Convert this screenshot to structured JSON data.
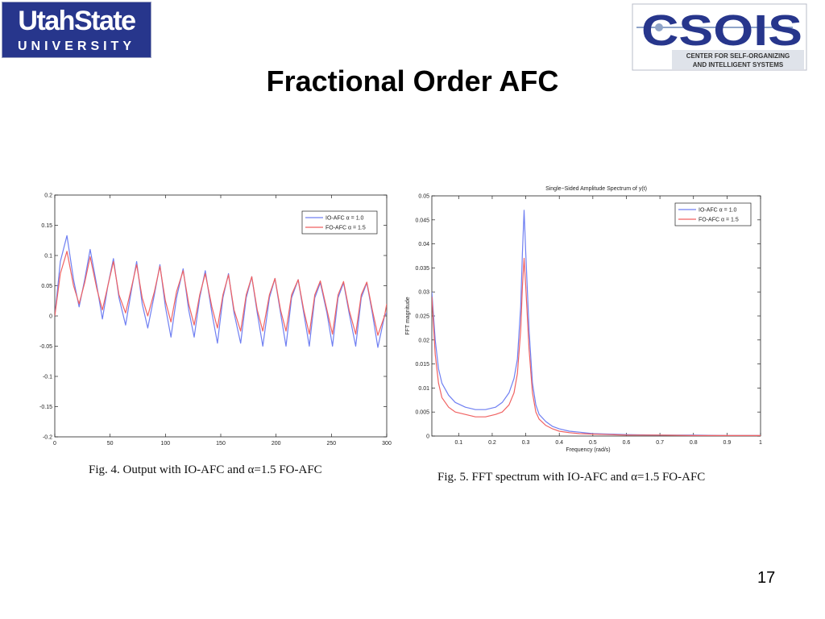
{
  "slide": {
    "title": "Fractional Order AFC",
    "page_number": "17",
    "logos": {
      "left": {
        "line1": "UtahState",
        "line2": "UNIVERSITY",
        "color": "#27368c"
      },
      "right": {
        "name": "CSOIS",
        "line1": "CENTER FOR SELF-ORGANIZING",
        "line2": "AND INTELLIGENT SYSTEMS",
        "color": "#27368c"
      }
    }
  },
  "colors": {
    "io_afc": "#6f7ff2",
    "fo_afc": "#f06262"
  },
  "chart_data": [
    {
      "type": "line",
      "title": "",
      "caption": "Fig. 4.    Output with IO-AFC and α=1.5 FO-AFC",
      "xlabel": "",
      "ylabel": "",
      "xlim": [
        0,
        300
      ],
      "ylim": [
        -0.2,
        0.2
      ],
      "xticks": [
        "0",
        "50",
        "100",
        "150",
        "200",
        "250",
        "300"
      ],
      "yticks": [
        "0.2",
        "0.15",
        "0.1",
        "0.05",
        "0",
        "-0.05",
        "-0.1",
        "-0.15",
        "-0.2"
      ],
      "grid": false,
      "legend_position": "top-right",
      "series": [
        {
          "name": "IO-AFC α = 1.0",
          "color": "#6f7ff2",
          "x": [
            0,
            5,
            11,
            17,
            22,
            27,
            32,
            38,
            43,
            48,
            53,
            58,
            64,
            69,
            74,
            79,
            84,
            90,
            95,
            100,
            105,
            110,
            116,
            121,
            126,
            131,
            136,
            142,
            147,
            152,
            157,
            162,
            168,
            173,
            178,
            183,
            188,
            194,
            199,
            204,
            209,
            214,
            220,
            225,
            230,
            235,
            240,
            246,
            251,
            256,
            261,
            266,
            272,
            277,
            282,
            287,
            292,
            298,
            300
          ],
          "y": [
            0,
            0.09,
            0.133,
            0.06,
            0.015,
            0.06,
            0.11,
            0.05,
            -0.005,
            0.05,
            0.095,
            0.03,
            -0.015,
            0.04,
            0.09,
            0.02,
            -0.02,
            0.035,
            0.085,
            0.015,
            -0.035,
            0.03,
            0.078,
            0.01,
            -0.035,
            0.03,
            0.075,
            0.005,
            -0.045,
            0.03,
            0.07,
            0.005,
            -0.045,
            0.03,
            0.065,
            0.005,
            -0.05,
            0.03,
            0.062,
            0.005,
            -0.05,
            0.03,
            0.06,
            0.005,
            -0.05,
            0.03,
            0.055,
            0.005,
            -0.05,
            0.03,
            0.055,
            0.005,
            -0.05,
            0.03,
            0.055,
            0.005,
            -0.052,
            0.0,
            0.005
          ]
        },
        {
          "name": "FO-AFC α = 1.5",
          "color": "#f06262",
          "x": [
            0,
            5,
            11,
            17,
            22,
            27,
            32,
            38,
            43,
            48,
            53,
            58,
            64,
            69,
            74,
            79,
            84,
            90,
            95,
            100,
            105,
            110,
            116,
            121,
            126,
            131,
            136,
            142,
            147,
            152,
            157,
            162,
            168,
            173,
            178,
            183,
            188,
            194,
            199,
            204,
            209,
            214,
            220,
            225,
            230,
            235,
            240,
            246,
            251,
            256,
            261,
            266,
            272,
            277,
            282,
            287,
            292,
            298,
            300
          ],
          "y": [
            0,
            0.07,
            0.107,
            0.05,
            0.02,
            0.055,
            0.098,
            0.045,
            0.01,
            0.05,
            0.09,
            0.035,
            0.005,
            0.045,
            0.085,
            0.03,
            0.0,
            0.04,
            0.082,
            0.025,
            -0.01,
            0.04,
            0.075,
            0.02,
            -0.015,
            0.035,
            0.07,
            0.015,
            -0.02,
            0.035,
            0.068,
            0.01,
            -0.025,
            0.035,
            0.065,
            0.01,
            -0.025,
            0.035,
            0.062,
            0.01,
            -0.025,
            0.035,
            0.06,
            0.01,
            -0.03,
            0.035,
            0.058,
            0.01,
            -0.03,
            0.035,
            0.057,
            0.01,
            -0.03,
            0.035,
            0.056,
            0.01,
            -0.032,
            0.0,
            0.02
          ]
        }
      ]
    },
    {
      "type": "line",
      "title": "Single−Sided Amplitude Spectrum of y(t)",
      "caption": "Fig. 5.    FFT spectrum with IO-AFC and α=1.5 FO-AFC",
      "xlabel": "Frequency (rad/s)",
      "ylabel": "FFT magnitude",
      "xlim": [
        0.02,
        1
      ],
      "ylim": [
        0,
        0.05
      ],
      "xticks": [
        "0.1",
        "0.2",
        "0.3",
        "0.4",
        "0.5",
        "0.6",
        "0.7",
        "0.8",
        "0.9",
        "1"
      ],
      "yticks": [
        "0.05",
        "0.045",
        "0.04",
        "0.035",
        "0.03",
        "0.025",
        "0.02",
        "0.015",
        "0.01",
        "0.005",
        "0"
      ],
      "grid": false,
      "legend_position": "top-right",
      "series": [
        {
          "name": "IO-AFC α = 1.0",
          "color": "#6f7ff2",
          "x": [
            0.02,
            0.03,
            0.04,
            0.05,
            0.07,
            0.09,
            0.12,
            0.15,
            0.18,
            0.21,
            0.23,
            0.25,
            0.265,
            0.275,
            0.285,
            0.29,
            0.295,
            0.3,
            0.31,
            0.32,
            0.33,
            0.34,
            0.36,
            0.38,
            0.4,
            0.43,
            0.46,
            0.5,
            0.55,
            0.6,
            0.7,
            0.8,
            0.9,
            1.0
          ],
          "y": [
            0.03,
            0.02,
            0.014,
            0.011,
            0.0085,
            0.007,
            0.006,
            0.0055,
            0.0055,
            0.006,
            0.007,
            0.009,
            0.012,
            0.016,
            0.027,
            0.038,
            0.047,
            0.038,
            0.022,
            0.011,
            0.0065,
            0.0045,
            0.003,
            0.002,
            0.0015,
            0.001,
            0.0008,
            0.0005,
            0.0004,
            0.0003,
            0.0002,
            0.0002,
            0.0001,
            0.0001
          ]
        },
        {
          "name": "FO-AFC α = 1.5",
          "color": "#f06262",
          "x": [
            0.02,
            0.03,
            0.04,
            0.05,
            0.07,
            0.09,
            0.12,
            0.15,
            0.18,
            0.21,
            0.23,
            0.25,
            0.265,
            0.275,
            0.285,
            0.29,
            0.295,
            0.3,
            0.31,
            0.32,
            0.33,
            0.34,
            0.36,
            0.38,
            0.4,
            0.43,
            0.46,
            0.5,
            0.55,
            0.6,
            0.7,
            0.8,
            0.9,
            1.0
          ],
          "y": [
            0.029,
            0.017,
            0.011,
            0.008,
            0.006,
            0.005,
            0.0045,
            0.004,
            0.004,
            0.0045,
            0.005,
            0.0065,
            0.009,
            0.013,
            0.022,
            0.031,
            0.037,
            0.031,
            0.018,
            0.009,
            0.005,
            0.0035,
            0.0022,
            0.0015,
            0.001,
            0.0007,
            0.0005,
            0.0004,
            0.0003,
            0.0002,
            0.0002,
            0.0001,
            0.0001,
            0.0001
          ]
        }
      ]
    }
  ]
}
